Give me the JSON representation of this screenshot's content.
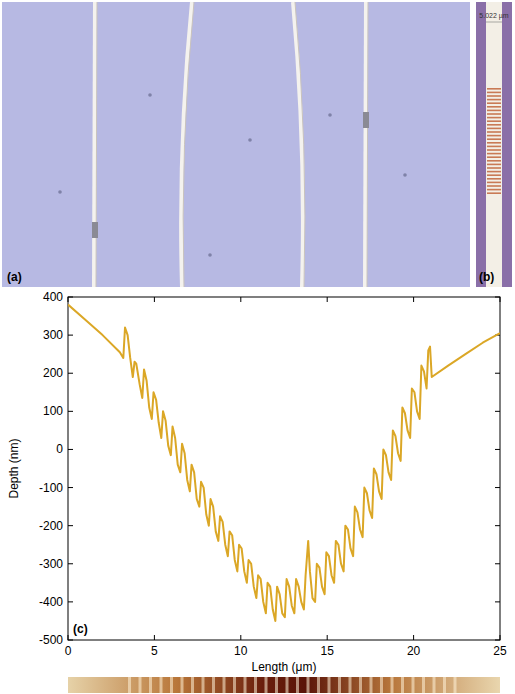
{
  "panels": {
    "a": {
      "label": "(a)"
    },
    "b": {
      "label": "(b)",
      "scale_text": "5.022 µm"
    }
  },
  "chart_data": {
    "type": "line",
    "xlabel": "Length (μm)",
    "ylabel": "Depth (nm)",
    "annotations": [
      "(c)"
    ],
    "color": "#dba726",
    "x": [
      0,
      1,
      2,
      3,
      3.2,
      3.3,
      3.45,
      3.6,
      3.75,
      3.85,
      3.95,
      4.15,
      4.3,
      4.4,
      4.55,
      4.7,
      4.85,
      4.95,
      5.1,
      5.25,
      5.4,
      5.5,
      5.65,
      5.8,
      5.95,
      6.05,
      6.2,
      6.35,
      6.5,
      6.6,
      6.75,
      6.9,
      7.05,
      7.15,
      7.3,
      7.45,
      7.6,
      7.7,
      7.85,
      8.0,
      8.15,
      8.25,
      8.4,
      8.55,
      8.7,
      8.8,
      8.95,
      9.1,
      9.25,
      9.35,
      9.5,
      9.65,
      9.8,
      9.9,
      10.05,
      10.2,
      10.35,
      10.45,
      10.6,
      10.75,
      10.9,
      11.0,
      11.15,
      11.3,
      11.45,
      11.55,
      11.7,
      11.85,
      12.0,
      12.1,
      12.25,
      12.4,
      12.55,
      12.65,
      12.8,
      12.95,
      13.1,
      13.2,
      13.35,
      13.5,
      13.65,
      13.75,
      13.9,
      14.0,
      14.15,
      14.3,
      14.4,
      14.55,
      14.7,
      14.85,
      14.95,
      15.1,
      15.25,
      15.4,
      15.5,
      15.65,
      15.8,
      15.95,
      16.05,
      16.2,
      16.35,
      16.5,
      16.6,
      16.75,
      16.9,
      17.05,
      17.15,
      17.3,
      17.45,
      17.6,
      17.7,
      17.85,
      18.0,
      18.15,
      18.25,
      18.4,
      18.55,
      18.7,
      18.8,
      18.95,
      19.1,
      19.25,
      19.35,
      19.5,
      19.65,
      19.8,
      19.9,
      20.05,
      20.2,
      20.35,
      20.45,
      20.6,
      20.75,
      20.85,
      20.95,
      21.05,
      22,
      23,
      24,
      25
    ],
    "values": [
      380,
      340,
      300,
      255,
      240,
      320,
      300,
      240,
      190,
      230,
      225,
      170,
      135,
      210,
      180,
      110,
      80,
      150,
      130,
      70,
      30,
      100,
      75,
      10,
      -15,
      60,
      30,
      -40,
      -60,
      15,
      -10,
      -80,
      -110,
      -40,
      -60,
      -130,
      -150,
      -85,
      -100,
      -170,
      -200,
      -130,
      -150,
      -215,
      -240,
      -175,
      -190,
      -250,
      -280,
      -215,
      -225,
      -290,
      -320,
      -250,
      -260,
      -320,
      -350,
      -290,
      -300,
      -360,
      -390,
      -330,
      -340,
      -400,
      -430,
      -350,
      -360,
      -420,
      -450,
      -360,
      -380,
      -430,
      -440,
      -340,
      -360,
      -410,
      -430,
      -340,
      -360,
      -400,
      -420,
      -330,
      -240,
      -320,
      -390,
      -400,
      -300,
      -310,
      -360,
      -380,
      -270,
      -280,
      -330,
      -350,
      -240,
      -250,
      -300,
      -320,
      -200,
      -210,
      -260,
      -280,
      -150,
      -165,
      -210,
      -230,
      -100,
      -115,
      -160,
      -180,
      -50,
      -65,
      -110,
      -130,
      0,
      -15,
      -60,
      -80,
      50,
      35,
      -10,
      -30,
      110,
      95,
      50,
      30,
      160,
      150,
      100,
      80,
      220,
      205,
      160,
      260,
      270,
      190,
      220,
      250,
      280,
      305
    ],
    "xlim": [
      0,
      25
    ],
    "ylim": [
      -500,
      400
    ],
    "xticks": [
      0,
      5,
      10,
      15,
      20,
      25
    ],
    "yticks": [
      -500,
      -400,
      -300,
      -200,
      -100,
      0,
      100,
      200,
      300,
      400
    ],
    "grid": false
  }
}
